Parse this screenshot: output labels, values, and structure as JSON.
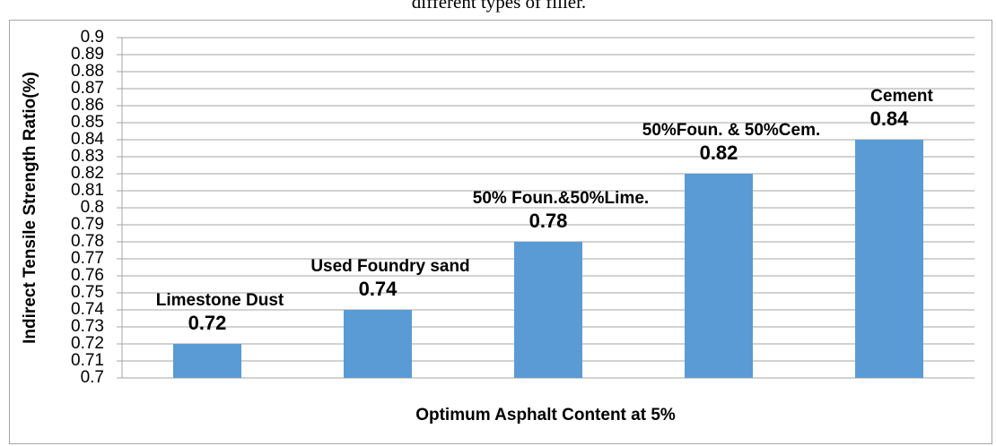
{
  "chart_data": {
    "type": "bar",
    "title": "different types of filler.",
    "categories": [
      "Limestone Dust",
      "Used Foundry sand",
      "50% Foun.&50%Lime.",
      "50%Foun. & 50%Cem.",
      "Cement"
    ],
    "values": [
      0.72,
      0.74,
      0.78,
      0.82,
      0.84
    ],
    "color": "#5b9bd5",
    "ylim": [
      0.7,
      0.9
    ],
    "yticks": [
      0.7,
      0.71,
      0.72,
      0.73,
      0.74,
      0.75,
      0.76,
      0.77,
      0.78,
      0.79,
      0.8,
      0.81,
      0.82,
      0.83,
      0.84,
      0.85,
      0.86,
      0.87,
      0.88,
      0.89,
      0.9
    ],
    "grid": true,
    "y_label": "Indirect Tensile Strength Ratio(%)",
    "x_label": "Optimum Asphalt Content at 5%"
  }
}
